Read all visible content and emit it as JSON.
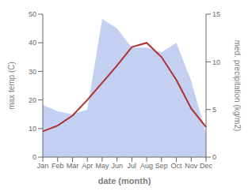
{
  "chart_data": {
    "type": "line",
    "xlabel": "date (month)",
    "ylabel": "max temp (C)",
    "y2label": "med. precipitation (kg/m2)",
    "categories": [
      "Jan",
      "Feb",
      "Mar",
      "Apr",
      "May",
      "Jun",
      "Jul",
      "Aug",
      "Sep",
      "Oct",
      "Nov",
      "Dec"
    ],
    "series": [
      {
        "type": "area",
        "axis": "y2",
        "color": "#b8c8f0",
        "values": [
          5.5,
          4.8,
          4.5,
          5.0,
          14.5,
          13.5,
          11.5,
          11.5,
          11.0,
          12.0,
          8.0,
          2.5
        ]
      },
      {
        "type": "line",
        "axis": "y",
        "color": "#b03030",
        "values": [
          9.0,
          11.0,
          14.5,
          20.0,
          26.0,
          32.0,
          38.5,
          40.0,
          35.0,
          27.0,
          17.0,
          10.5
        ]
      }
    ],
    "ylim": [
      0,
      50
    ],
    "yticks": [
      0,
      10,
      20,
      30,
      40,
      50
    ],
    "y2lim": [
      0,
      15
    ],
    "y2ticks": [
      0,
      5,
      10,
      15
    ],
    "grid": false
  }
}
